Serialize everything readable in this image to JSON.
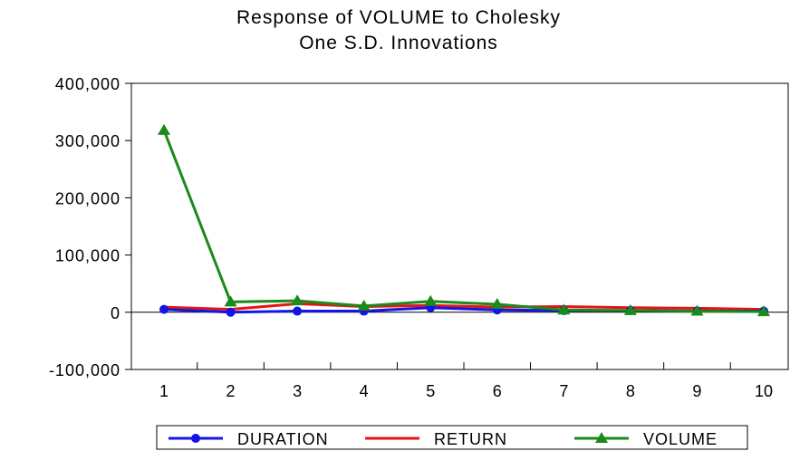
{
  "chart_data": {
    "type": "line",
    "title": "Response of VOLUME to Cholesky",
    "subtitle": "One S.D. Innovations",
    "x": [
      1,
      2,
      3,
      4,
      5,
      6,
      7,
      8,
      9,
      10
    ],
    "x_tick_labels": [
      "1",
      "2",
      "3",
      "4",
      "5",
      "6",
      "7",
      "8",
      "9",
      "10"
    ],
    "ylim": [
      -100000,
      400000
    ],
    "y_ticks": [
      -100000,
      0,
      100000,
      200000,
      300000,
      400000
    ],
    "y_tick_labels": [
      "-100,000",
      "0",
      "100,000",
      "200,000",
      "300,000",
      "400,000"
    ],
    "grid": false,
    "legend_position": "bottom",
    "series": [
      {
        "name": "DURATION",
        "color": "#1414e6",
        "marker": "circle",
        "values": [
          5000,
          0,
          2000,
          2000,
          8000,
          4000,
          3000,
          3000,
          2000,
          2000
        ]
      },
      {
        "name": "RETURN",
        "color": "#e61414",
        "marker": "none",
        "values": [
          9000,
          5000,
          15000,
          10000,
          12000,
          9000,
          10000,
          8000,
          7000,
          5000
        ]
      },
      {
        "name": "VOLUME",
        "color": "#1a8a1a",
        "marker": "triangle",
        "values": [
          318000,
          18000,
          20000,
          11000,
          19000,
          14000,
          4000,
          3000,
          2000,
          1000
        ]
      }
    ]
  }
}
